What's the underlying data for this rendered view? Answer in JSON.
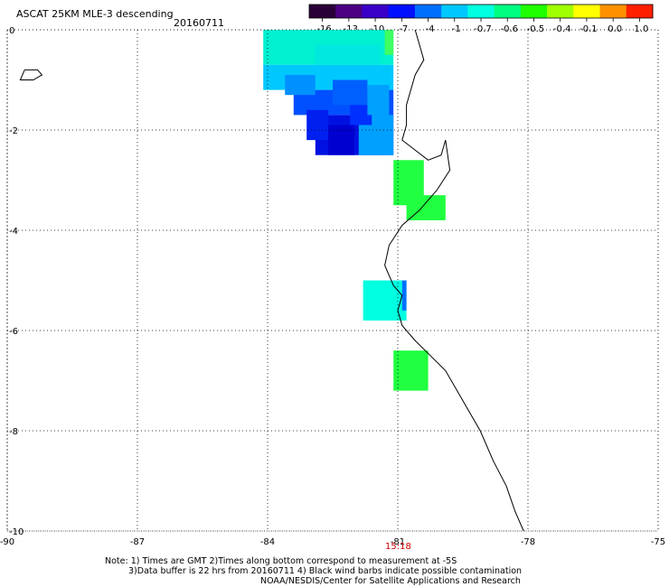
{
  "header": {
    "title": "ASCAT 25KM MLE-3 descending",
    "date": "20160711"
  },
  "colorbar": {
    "labels": [
      "-16",
      "-13",
      "-10",
      "-7",
      "-4",
      "-1",
      "-0.7",
      "-0.6",
      "-0.5",
      "-0.4",
      "-0.1",
      "0.0",
      "1.0"
    ],
    "colors": [
      "#2a0038",
      "#4b0082",
      "#3a00c8",
      "#0010ff",
      "#0070ff",
      "#00c8ff",
      "#00ffe0",
      "#00ff80",
      "#20ff00",
      "#a0ff00",
      "#ffff00",
      "#ff9000",
      "#ff2000"
    ]
  },
  "map": {
    "x_ticks": [
      "-90",
      "-87",
      "-84",
      "-81",
      "-78",
      "-75"
    ],
    "y_ticks": [
      "0",
      "-2",
      "-4",
      "-6",
      "-8",
      "-10"
    ],
    "lon_range": [
      -90,
      -75
    ],
    "lat_range": [
      -10,
      0
    ],
    "time_label": "15:18",
    "time_lon": -81,
    "data_cells": [
      {
        "lon0": -84.1,
        "lon1": -81.1,
        "lat0": -0.7,
        "lat1": 0,
        "color": "#00f0d0"
      },
      {
        "lon0": -84.1,
        "lon1": -81.1,
        "lat0": -1.2,
        "lat1": -0.7,
        "color": "#00c8ff"
      },
      {
        "lon0": -83.4,
        "lon1": -81.1,
        "lat0": -1.7,
        "lat1": -1.2,
        "color": "#0050ff"
      },
      {
        "lon0": -82.9,
        "lon1": -81.1,
        "lat0": -2.5,
        "lat1": -1.7,
        "color": "#0010e0"
      },
      {
        "lon0": -81.9,
        "lon1": -81.1,
        "lat0": -2.5,
        "lat1": -1.7,
        "color": "#00a0ff"
      },
      {
        "lon0": -81.1,
        "lon1": -80.4,
        "lat0": -3.5,
        "lat1": -2.6,
        "color": "#20ff40"
      },
      {
        "lon0": -80.8,
        "lon1": -79.9,
        "lat0": -3.8,
        "lat1": -3.3,
        "color": "#20ff40"
      },
      {
        "lon0": -81.0,
        "lon1": -80.8,
        "lat0": -5.8,
        "lat1": -5.0,
        "color": "#00ffe0"
      },
      {
        "lon0": -81.8,
        "lon1": -80.9,
        "lat0": -5.8,
        "lat1": -5.0,
        "color": "#00ffe0"
      },
      {
        "lon0": -80.9,
        "lon1": -80.8,
        "lat0": -5.6,
        "lat1": -5.0,
        "color": "#0070ff"
      },
      {
        "lon0": -81.1,
        "lon1": -80.3,
        "lat0": -7.2,
        "lat1": -6.4,
        "color": "#20ff40"
      }
    ]
  },
  "notes": {
    "line1": "Note: 1) Times are GMT 2)Times along bottom correspond to measurement at -5S",
    "line2": "3)Data buffer is 22 hrs from 20160711 4) Black wind barbs indicate possible contamination",
    "line3": "NOAA/NESDIS/Center for Satellite Applications and Research"
  }
}
